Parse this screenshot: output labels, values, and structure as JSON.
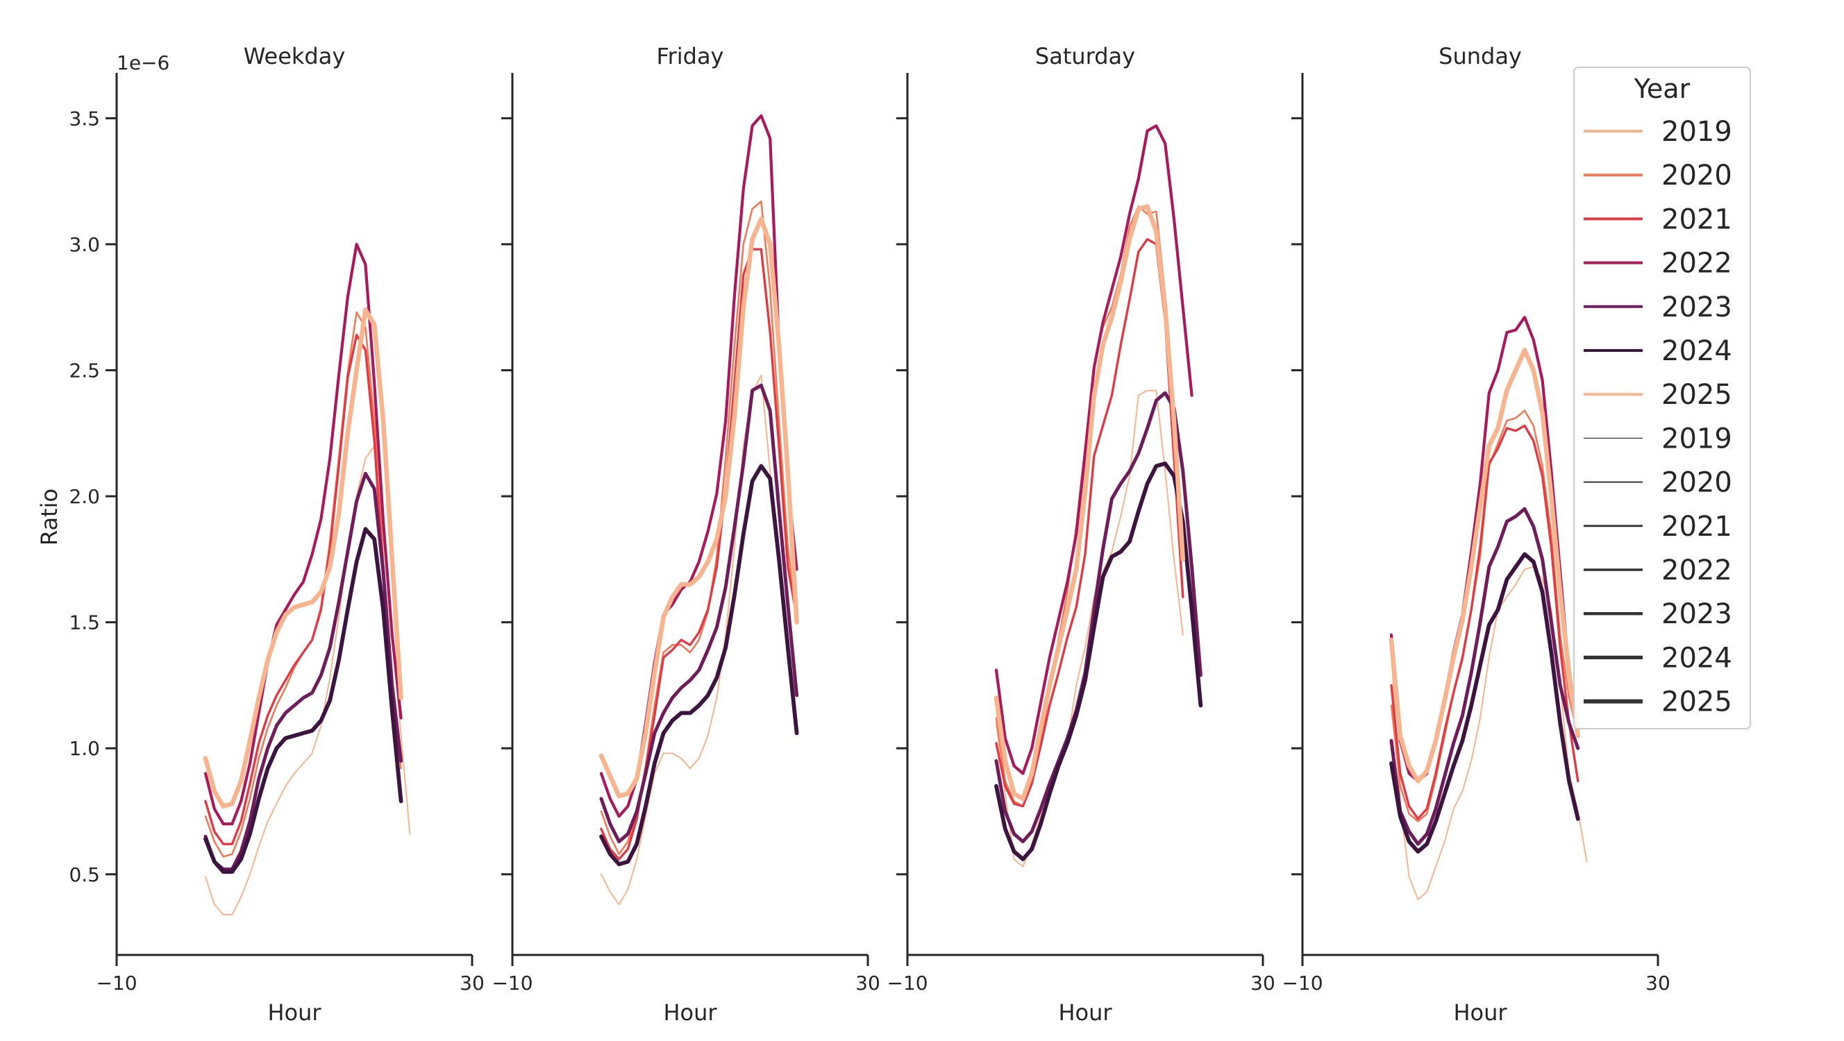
{
  "chart_data": {
    "type": "line",
    "xlabel": "Hour",
    "ylabel": "Ratio",
    "y_offset_label": "1e−6",
    "xlim": [
      -10,
      30
    ],
    "ylim": [
      0.18,
      3.68
    ],
    "x_ticks": [
      -10,
      30
    ],
    "x_tick_labels": [
      "−10",
      "30"
    ],
    "y_ticks": [
      0.5,
      1.0,
      1.5,
      2.0,
      2.5,
      3.0,
      3.5
    ],
    "y_tick_labels": [
      "0.5",
      "1.0",
      "1.5",
      "2.0",
      "2.5",
      "3.0",
      "3.5"
    ],
    "grid": false,
    "x": [
      0,
      1,
      2,
      3,
      4,
      5,
      6,
      7,
      8,
      9,
      10,
      11,
      12,
      13,
      14,
      15,
      16,
      17,
      18,
      19,
      20,
      21,
      22,
      23
    ],
    "legend": {
      "title": "Year",
      "placement": "top-right",
      "hue_entries": [
        {
          "label": "2019",
          "color": "#f6b48f"
        },
        {
          "label": "2020",
          "color": "#ef7a5a"
        },
        {
          "label": "2021",
          "color": "#e03b45"
        },
        {
          "label": "2022",
          "color": "#a81a5c"
        },
        {
          "label": "2023",
          "color": "#6f1d5a"
        },
        {
          "label": "2024",
          "color": "#3b1540"
        },
        {
          "label": "2025",
          "color": "#f6b48f"
        }
      ],
      "size_entries": [
        {
          "label": "2019",
          "width": 1.2
        },
        {
          "label": "2020",
          "width": 2.0
        },
        {
          "label": "2021",
          "width": 2.8
        },
        {
          "label": "2022",
          "width": 3.6
        },
        {
          "label": "2023",
          "width": 4.4
        },
        {
          "label": "2024",
          "width": 5.2
        },
        {
          "label": "2025",
          "width": 6.0
        }
      ]
    },
    "panels": [
      {
        "title": "Weekday",
        "series": [
          {
            "name": "2019",
            "color": "#f6b48f",
            "width": 2.0,
            "values": [
              0.49,
              0.38,
              0.34,
              0.34,
              0.41,
              0.5,
              0.61,
              0.71,
              0.78,
              0.85,
              0.9,
              0.94,
              0.98,
              1.09,
              1.28,
              1.52,
              1.78,
              2.0,
              2.15,
              2.2,
              1.85,
              1.45,
              1.05,
              0.66
            ]
          },
          {
            "name": "2020",
            "color": "#ef7a5a",
            "width": 2.6,
            "values": [
              0.73,
              0.63,
              0.57,
              0.58,
              0.67,
              0.8,
              0.96,
              1.08,
              1.17,
              1.24,
              1.32,
              1.38,
              1.43,
              1.56,
              1.82,
              2.15,
              2.49,
              2.73,
              2.67,
              2.3,
              1.75,
              1.2,
              0.92
            ]
          },
          {
            "name": "2021",
            "color": "#e03b45",
            "width": 3.4,
            "values": [
              0.79,
              0.67,
              0.62,
              0.62,
              0.71,
              0.86,
              1.02,
              1.13,
              1.21,
              1.27,
              1.33,
              1.38,
              1.43,
              1.55,
              1.79,
              2.12,
              2.47,
              2.64,
              2.58,
              2.22,
              1.7,
              1.2,
              0.97
            ]
          },
          {
            "name": "2022",
            "color": "#a81a5c",
            "width": 4.2,
            "values": [
              0.9,
              0.76,
              0.7,
              0.7,
              0.79,
              0.94,
              1.14,
              1.34,
              1.49,
              1.55,
              1.61,
              1.66,
              1.77,
              1.91,
              2.15,
              2.48,
              2.79,
              3.0,
              2.92,
              2.45,
              1.9,
              1.45,
              1.12
            ]
          },
          {
            "name": "2023",
            "color": "#6f1d5a",
            "width": 5.0,
            "values": [
              0.65,
              0.55,
              0.52,
              0.52,
              0.59,
              0.71,
              0.88,
              1.0,
              1.09,
              1.14,
              1.17,
              1.2,
              1.22,
              1.29,
              1.4,
              1.58,
              1.78,
              1.98,
              2.09,
              2.03,
              1.7,
              1.25,
              0.95
            ]
          },
          {
            "name": "2024",
            "color": "#3b1540",
            "width": 5.8,
            "values": [
              0.64,
              0.55,
              0.51,
              0.51,
              0.56,
              0.66,
              0.8,
              0.92,
              1.0,
              1.04,
              1.05,
              1.06,
              1.07,
              1.11,
              1.19,
              1.35,
              1.55,
              1.74,
              1.87,
              1.83,
              1.55,
              1.15,
              0.79
            ]
          },
          {
            "name": "2025",
            "color": "#f6b48f",
            "width": 6.6,
            "values": [
              0.96,
              0.83,
              0.77,
              0.78,
              0.87,
              1.03,
              1.2,
              1.35,
              1.46,
              1.53,
              1.56,
              1.57,
              1.58,
              1.62,
              1.72,
              1.93,
              2.25,
              2.5,
              2.74,
              2.68,
              2.3,
              1.75,
              1.2
            ]
          }
        ]
      },
      {
        "title": "Friday",
        "series": [
          {
            "name": "2019",
            "color": "#f6b48f",
            "width": 2.0,
            "values": [
              0.5,
              0.43,
              0.38,
              0.44,
              0.56,
              0.73,
              0.9,
              0.98,
              0.98,
              0.96,
              0.92,
              0.96,
              1.05,
              1.2,
              1.45,
              1.8,
              2.2,
              2.41,
              2.48,
              2.1,
              1.75,
              1.35,
              1.1
            ]
          },
          {
            "name": "2020",
            "color": "#ef7a5a",
            "width": 2.6,
            "values": [
              0.75,
              0.65,
              0.58,
              0.63,
              0.74,
              0.93,
              1.17,
              1.38,
              1.41,
              1.41,
              1.38,
              1.43,
              1.54,
              1.76,
              2.15,
              2.6,
              3.0,
              3.14,
              3.17,
              2.82,
              2.3,
              1.8,
              1.5
            ]
          },
          {
            "name": "2021",
            "color": "#e03b45",
            "width": 3.4,
            "values": [
              0.68,
              0.6,
              0.56,
              0.6,
              0.72,
              0.92,
              1.13,
              1.36,
              1.39,
              1.43,
              1.41,
              1.46,
              1.55,
              1.72,
              2.03,
              2.45,
              2.88,
              2.98,
              2.98,
              2.65,
              2.2,
              1.72,
              1.52
            ]
          },
          {
            "name": "2022",
            "color": "#a81a5c",
            "width": 4.2,
            "values": [
              0.9,
              0.8,
              0.73,
              0.77,
              0.88,
              1.1,
              1.34,
              1.53,
              1.57,
              1.63,
              1.66,
              1.74,
              1.86,
              2.01,
              2.3,
              2.8,
              3.22,
              3.47,
              3.51,
              3.42,
              2.6,
              2.05,
              1.71
            ]
          },
          {
            "name": "2023",
            "color": "#6f1d5a",
            "width": 5.0,
            "values": [
              0.8,
              0.7,
              0.63,
              0.66,
              0.75,
              0.9,
              1.06,
              1.14,
              1.2,
              1.24,
              1.27,
              1.31,
              1.39,
              1.48,
              1.64,
              1.88,
              2.13,
              2.42,
              2.44,
              2.34,
              1.95,
              1.57,
              1.21
            ]
          },
          {
            "name": "2024",
            "color": "#3b1540",
            "width": 5.8,
            "values": [
              0.65,
              0.58,
              0.54,
              0.55,
              0.62,
              0.77,
              0.94,
              1.06,
              1.11,
              1.14,
              1.14,
              1.17,
              1.21,
              1.28,
              1.4,
              1.61,
              1.85,
              2.06,
              2.12,
              2.07,
              1.75,
              1.4,
              1.06
            ]
          },
          {
            "name": "2025",
            "color": "#f6b48f",
            "width": 6.6,
            "values": [
              0.97,
              0.89,
              0.81,
              0.82,
              0.88,
              1.06,
              1.3,
              1.52,
              1.6,
              1.65,
              1.65,
              1.68,
              1.74,
              1.83,
              2.0,
              2.32,
              2.75,
              3.02,
              3.1,
              3.0,
              2.6,
              2.1,
              1.5
            ]
          }
        ]
      },
      {
        "title": "Saturday",
        "series": [
          {
            "name": "2019",
            "color": "#f6b48f",
            "width": 2.0,
            "values": [
              1.1,
              0.82,
              0.56,
              0.53,
              0.62,
              0.73,
              0.85,
              0.94,
              1.02,
              1.25,
              1.4,
              1.6,
              1.7,
              1.78,
              1.92,
              2.08,
              2.4,
              2.42,
              2.42,
              2.1,
              1.75,
              1.45
            ]
          },
          {
            "name": "2020",
            "color": "#ef7a5a",
            "width": 2.6,
            "values": [
              1.12,
              0.87,
              0.79,
              0.77,
              0.86,
              1.02,
              1.23,
              1.43,
              1.62,
              1.88,
              2.2,
              2.52,
              2.67,
              2.75,
              2.88,
              3.07,
              3.15,
              3.12,
              3.13,
              2.8,
              2.2,
              1.76
            ]
          },
          {
            "name": "2021",
            "color": "#e03b45",
            "width": 3.4,
            "values": [
              1.02,
              0.85,
              0.78,
              0.77,
              0.86,
              1.01,
              1.17,
              1.3,
              1.44,
              1.56,
              1.77,
              2.16,
              2.28,
              2.4,
              2.6,
              2.78,
              2.97,
              3.02,
              3.0,
              2.7,
              2.15,
              1.6
            ]
          },
          {
            "name": "2022",
            "color": "#a81a5c",
            "width": 4.2,
            "values": [
              1.31,
              1.04,
              0.93,
              0.9,
              1.0,
              1.18,
              1.36,
              1.51,
              1.66,
              1.85,
              2.17,
              2.51,
              2.69,
              2.82,
              2.95,
              3.12,
              3.26,
              3.45,
              3.47,
              3.4,
              3.1,
              2.75,
              2.4
            ]
          },
          {
            "name": "2023",
            "color": "#6f1d5a",
            "width": 5.0,
            "values": [
              0.95,
              0.75,
              0.66,
              0.63,
              0.67,
              0.76,
              0.86,
              0.95,
              1.04,
              1.15,
              1.3,
              1.55,
              1.79,
              1.99,
              2.05,
              2.1,
              2.17,
              2.27,
              2.38,
              2.41,
              2.35,
              2.1,
              1.72,
              1.29
            ]
          },
          {
            "name": "2024",
            "color": "#3b1540",
            "width": 5.8,
            "values": [
              0.85,
              0.68,
              0.59,
              0.56,
              0.6,
              0.7,
              0.82,
              0.93,
              1.02,
              1.13,
              1.27,
              1.48,
              1.68,
              1.76,
              1.78,
              1.82,
              1.94,
              2.05,
              2.12,
              2.13,
              2.08,
              1.9,
              1.55,
              1.17
            ]
          },
          {
            "name": "2025",
            "color": "#f6b48f",
            "width": 6.6,
            "values": [
              1.2,
              0.95,
              0.82,
              0.8,
              0.9,
              1.08,
              1.25,
              1.4,
              1.55,
              1.71,
              2.02,
              2.4,
              2.6,
              2.71,
              2.85,
              3.02,
              3.14,
              3.15,
              3.05,
              2.75,
              2.3,
              1.75
            ]
          }
        ]
      },
      {
        "title": "Sunday",
        "series": [
          {
            "name": "2019",
            "color": "#f6b48f",
            "width": 2.0,
            "values": [
              1.38,
              0.78,
              0.49,
              0.4,
              0.43,
              0.53,
              0.63,
              0.76,
              0.83,
              0.95,
              1.12,
              1.36,
              1.55,
              1.6,
              1.65,
              1.71,
              1.72,
              1.67,
              1.55,
              1.25,
              0.9,
              0.75,
              0.55
            ]
          },
          {
            "name": "2020",
            "color": "#ef7a5a",
            "width": 2.6,
            "values": [
              1.17,
              0.85,
              0.74,
              0.71,
              0.74,
              0.88,
              1.05,
              1.22,
              1.35,
              1.55,
              1.76,
              2.12,
              2.21,
              2.3,
              2.31,
              2.34,
              2.28,
              2.12,
              1.85,
              1.45,
              1.2,
              1.05
            ]
          },
          {
            "name": "2021",
            "color": "#e03b45",
            "width": 3.4,
            "values": [
              1.25,
              0.9,
              0.77,
              0.72,
              0.76,
              0.9,
              1.07,
              1.22,
              1.36,
              1.55,
              1.8,
              2.13,
              2.19,
              2.27,
              2.26,
              2.28,
              2.22,
              2.08,
              1.8,
              1.4,
              1.1,
              0.87
            ]
          },
          {
            "name": "2022",
            "color": "#a81a5c",
            "width": 4.2,
            "values": [
              1.45,
              1.03,
              0.9,
              0.87,
              0.9,
              1.03,
              1.2,
              1.38,
              1.53,
              1.78,
              2.05,
              2.41,
              2.5,
              2.65,
              2.66,
              2.71,
              2.62,
              2.46,
              2.1,
              1.7,
              1.3,
              1.05
            ]
          },
          {
            "name": "2023",
            "color": "#6f1d5a",
            "width": 5.0,
            "values": [
              1.03,
              0.75,
              0.67,
              0.62,
              0.66,
              0.76,
              0.89,
              1.02,
              1.13,
              1.3,
              1.5,
              1.72,
              1.8,
              1.9,
              1.92,
              1.95,
              1.88,
              1.75,
              1.5,
              1.25,
              1.1,
              1.0
            ]
          },
          {
            "name": "2024",
            "color": "#3b1540",
            "width": 5.8,
            "values": [
              0.94,
              0.73,
              0.63,
              0.59,
              0.62,
              0.71,
              0.82,
              0.93,
              1.03,
              1.17,
              1.33,
              1.49,
              1.55,
              1.67,
              1.72,
              1.77,
              1.74,
              1.62,
              1.38,
              1.1,
              0.87,
              0.72
            ]
          },
          {
            "name": "2025",
            "color": "#f6b48f",
            "width": 6.6,
            "values": [
              1.43,
              1.05,
              0.93,
              0.87,
              0.91,
              1.03,
              1.19,
              1.36,
              1.51,
              1.72,
              1.96,
              2.2,
              2.27,
              2.42,
              2.5,
              2.58,
              2.5,
              2.33,
              2.0,
              1.62,
              1.3,
              1.05
            ]
          }
        ]
      }
    ]
  }
}
